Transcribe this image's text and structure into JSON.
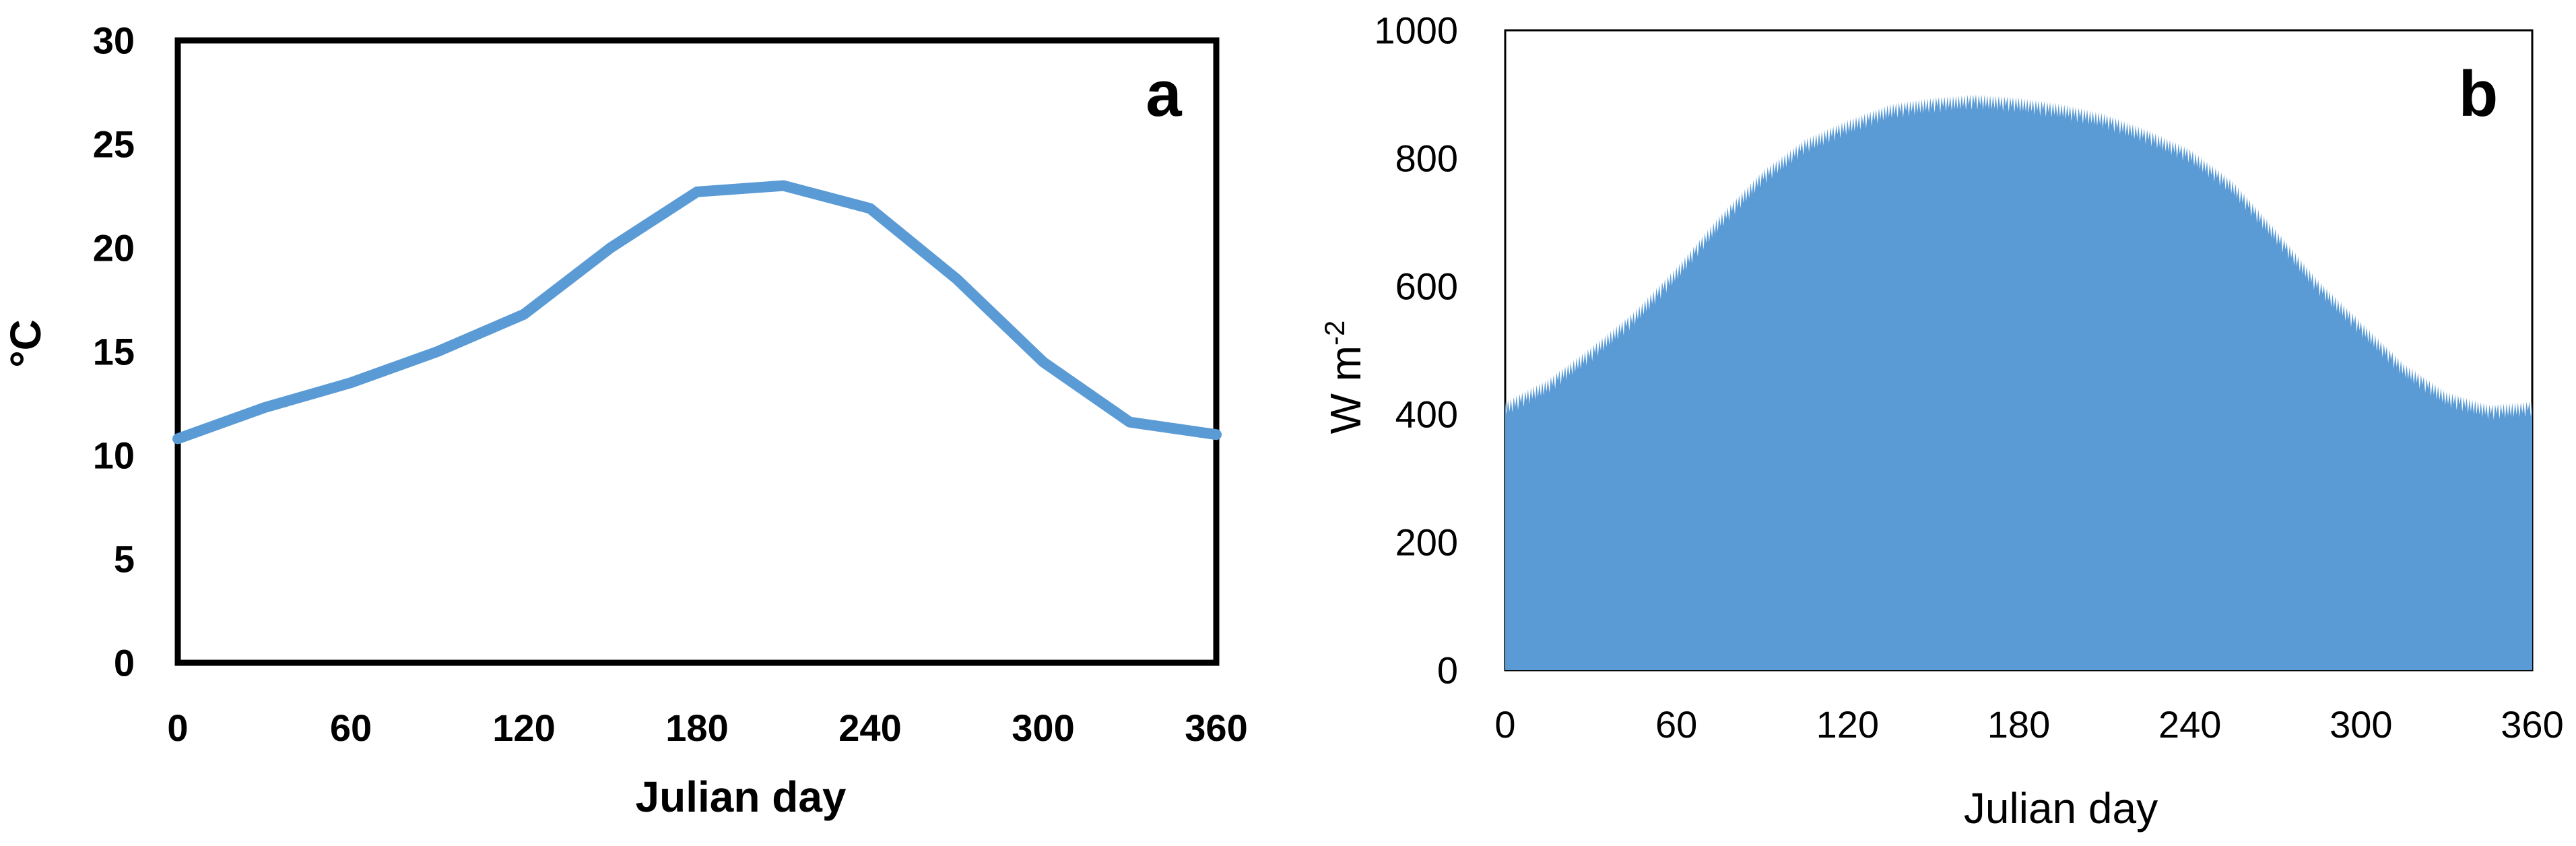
{
  "chart_data": [
    {
      "panel": "a",
      "type": "line",
      "panel_label": "a",
      "xlabel": "Julian day",
      "ylabel": "°C",
      "xlim": [
        0,
        360
      ],
      "ylim": [
        0,
        30
      ],
      "x_ticks": [
        "0",
        "60",
        "120",
        "180",
        "240",
        "300",
        "360"
      ],
      "y_ticks": [
        "0",
        "5",
        "10",
        "15",
        "20",
        "25",
        "30"
      ],
      "grid": false,
      "color": "#5B9BD5",
      "series": [
        {
          "x": [
            0,
            30,
            60,
            90,
            120,
            150,
            180,
            210,
            240,
            270,
            300,
            330,
            360
          ],
          "values": [
            10.8,
            12.3,
            13.5,
            15.0,
            16.8,
            20.0,
            22.7,
            23.0,
            21.9,
            18.5,
            14.5,
            11.6,
            11.0
          ]
        }
      ]
    },
    {
      "panel": "b",
      "type": "area",
      "panel_label": "b",
      "xlabel": "Julian day",
      "ylabel": "W m",
      "ylabel_superscript": "-2",
      "xlim": [
        0,
        360
      ],
      "ylim": [
        0,
        1000
      ],
      "x_ticks": [
        "0",
        "60",
        "120",
        "180",
        "240",
        "300",
        "360"
      ],
      "y_ticks": [
        "0",
        "200",
        "400",
        "600",
        "800",
        "1000"
      ],
      "grid": false,
      "color": "#5B9BD5",
      "series": [
        {
          "x": [
            0,
            15,
            30,
            45,
            60,
            75,
            90,
            105,
            120,
            135,
            150,
            165,
            180,
            195,
            210,
            225,
            240,
            255,
            270,
            285,
            300,
            315,
            330,
            345,
            360
          ],
          "values": [
            420,
            455,
            505,
            560,
            630,
            710,
            780,
            830,
            860,
            885,
            895,
            900,
            895,
            885,
            870,
            845,
            815,
            765,
            690,
            610,
            545,
            480,
            435,
            415,
            420
          ]
        }
      ]
    }
  ]
}
